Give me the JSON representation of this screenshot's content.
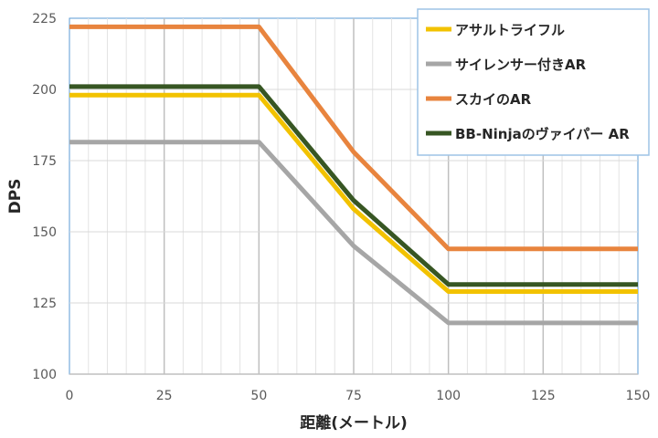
{
  "chart_data": {
    "type": "line",
    "xlabel": "距離(メートル)",
    "ylabel": "DPS",
    "xlim": [
      0,
      150
    ],
    "ylim": [
      100,
      225
    ],
    "xticks": [
      0,
      25,
      50,
      75,
      100,
      125,
      150
    ],
    "yticks": [
      100,
      125,
      150,
      175,
      200,
      225
    ],
    "grid": true,
    "legend_position": "top-right",
    "series": [
      {
        "name": "アサルトライフル",
        "color": "#F2C200",
        "x": [
          0,
          50,
          75,
          100,
          150
        ],
        "y": [
          198,
          198,
          158,
          129,
          129
        ]
      },
      {
        "name": "サイレンサー付きAR",
        "color": "#A6A6A6",
        "x": [
          0,
          50,
          75,
          100,
          150
        ],
        "y": [
          181.5,
          181.5,
          145,
          118,
          118
        ]
      },
      {
        "name": "スカイのAR",
        "color": "#E8843E",
        "x": [
          0,
          50,
          75,
          100,
          150
        ],
        "y": [
          222,
          222,
          178,
          144,
          144
        ]
      },
      {
        "name": "BB-Ninjaのヴァイパー AR",
        "color": "#375623",
        "x": [
          0,
          50,
          75,
          100,
          150
        ],
        "y": [
          201,
          201,
          161,
          131.5,
          131.5
        ]
      }
    ]
  }
}
